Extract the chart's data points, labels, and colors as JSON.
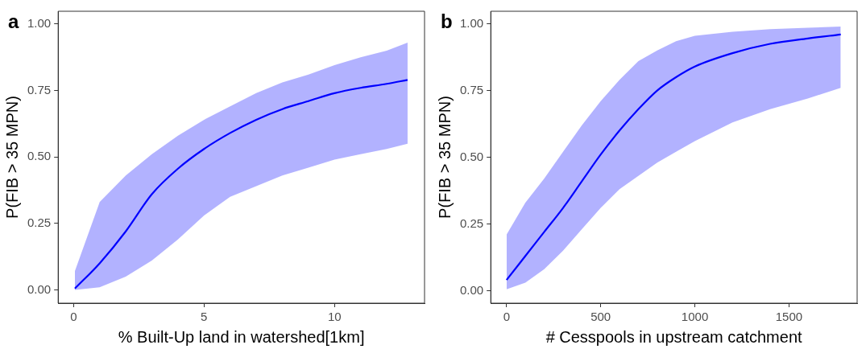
{
  "chart_data": [
    {
      "type": "line",
      "title": "a",
      "xlabel": "% Built-Up land in watershed[1km]",
      "ylabel": "P(FIB > 35 MPN)",
      "xlim": [
        -0.59,
        13.45
      ],
      "ylim": [
        -0.05,
        1.048
      ],
      "xticks": [
        0,
        5,
        10
      ],
      "yticks": [
        {
          "value": 0,
          "label": "0.00"
        },
        {
          "value": 0.25,
          "label": "0.25"
        },
        {
          "value": 0.5,
          "label": "0.50"
        },
        {
          "value": 0.75,
          "label": "0.75"
        },
        {
          "value": 1,
          "label": "1.00"
        }
      ],
      "grid": false,
      "legend": false,
      "marker": "none",
      "line_style": "solid",
      "series": [
        {
          "color": "#0000ff",
          "x": [
            0.05,
            1,
            2,
            3,
            4,
            5,
            6,
            7,
            8,
            9,
            10,
            11,
            12,
            12.8
          ],
          "values": [
            0.005,
            0.1,
            0.22,
            0.36,
            0.456,
            0.53,
            0.59,
            0.64,
            0.68,
            0.71,
            0.74,
            0.76,
            0.775,
            0.79
          ],
          "upper": [
            0.07,
            0.33,
            0.43,
            0.51,
            0.58,
            0.64,
            0.69,
            0.74,
            0.78,
            0.81,
            0.845,
            0.875,
            0.9,
            0.93
          ],
          "lower": [
            0,
            0.01,
            0.05,
            0.11,
            0.19,
            0.28,
            0.35,
            0.39,
            0.43,
            0.46,
            0.49,
            0.51,
            0.53,
            0.55
          ]
        }
      ]
    },
    {
      "type": "line",
      "title": "b",
      "xlabel": "# Cesspools in upstream catchment",
      "ylabel": "P(FIB > 35 MPN)",
      "xlim": [
        -84,
        1862
      ],
      "ylim": [
        -0.047,
        1.047
      ],
      "xticks": [
        0,
        500,
        1000,
        1500
      ],
      "yticks": [
        {
          "value": 0,
          "label": "0.00"
        },
        {
          "value": 0.25,
          "label": "0.25"
        },
        {
          "value": 0.5,
          "label": "0.50"
        },
        {
          "value": 0.75,
          "label": "0.75"
        },
        {
          "value": 1,
          "label": "1.00"
        }
      ],
      "grid": false,
      "legend": false,
      "marker": "none",
      "line_style": "solid",
      "series": [
        {
          "color": "#0000ff",
          "x": [
            0,
            100,
            200,
            300,
            400,
            500,
            600,
            700,
            800,
            900,
            1000,
            1200,
            1400,
            1600,
            1775
          ],
          "values": [
            0.04,
            0.13,
            0.22,
            0.31,
            0.41,
            0.51,
            0.6,
            0.68,
            0.75,
            0.8,
            0.84,
            0.89,
            0.925,
            0.945,
            0.96
          ],
          "upper": [
            0.21,
            0.33,
            0.42,
            0.52,
            0.62,
            0.71,
            0.79,
            0.86,
            0.9,
            0.935,
            0.955,
            0.97,
            0.98,
            0.985,
            0.99
          ],
          "lower": [
            0.005,
            0.03,
            0.08,
            0.15,
            0.23,
            0.31,
            0.38,
            0.43,
            0.48,
            0.52,
            0.56,
            0.63,
            0.68,
            0.72,
            0.76
          ]
        }
      ]
    }
  ]
}
